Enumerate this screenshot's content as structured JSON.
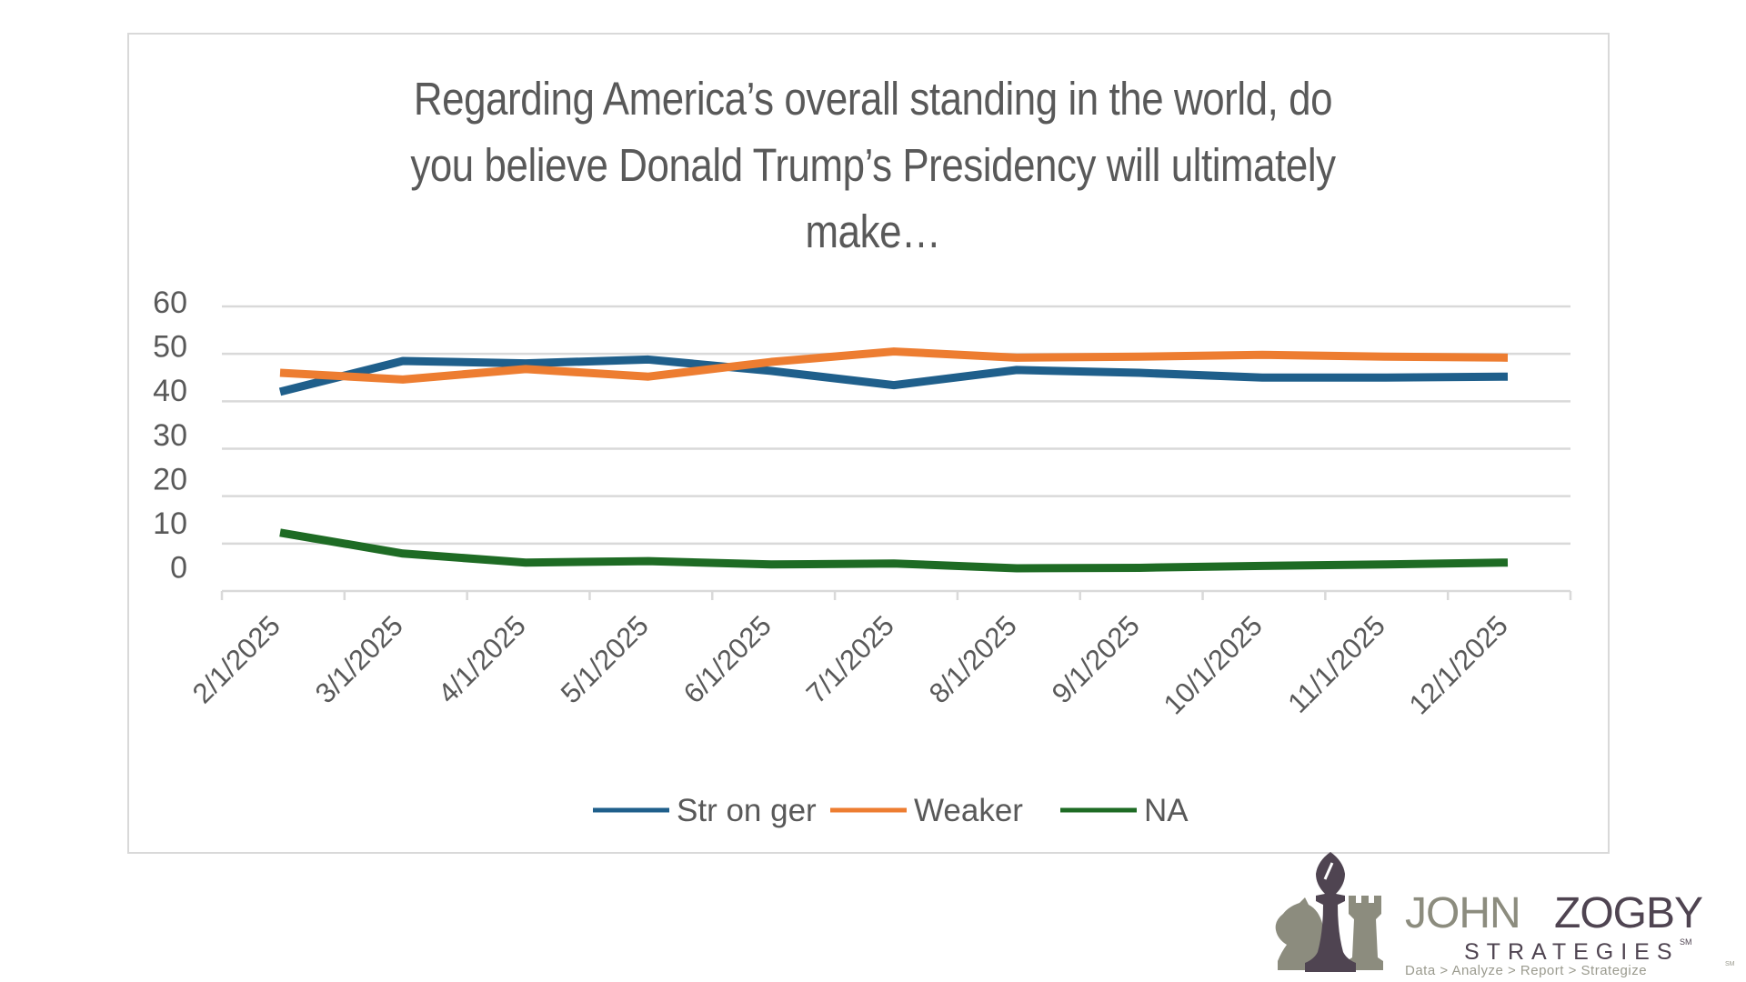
{
  "chart_data": {
    "type": "line",
    "title": "Regarding America’s overall standing in the world, do you believe Donald Trump’s Presidency will ultimately make…",
    "title_lines": [
      "Regarding America’s overall standing in the world, do",
      "you believe Donald Trump’s Presidency will ultimately",
      "make…"
    ],
    "xlabel": "",
    "ylabel": "",
    "categories": [
      "2/1/2025",
      "3/1/2025",
      "4/1/2025",
      "5/1/2025",
      "6/1/2025",
      "7/1/2025",
      "8/1/2025",
      "9/1/2025",
      "10/1/2025",
      "11/1/2025",
      "12/1/2025"
    ],
    "y_ticks": [
      "60",
      "50",
      "40",
      "30",
      "20",
      "10",
      "0"
    ],
    "ylim": [
      0,
      60
    ],
    "grid": true,
    "legend_position": "bottom",
    "series": [
      {
        "name": "Str on ger",
        "color": "#1f5f8b",
        "values": [
          42,
          48.5,
          48,
          48.8,
          46.4,
          43.4,
          46.6,
          46,
          45,
          45,
          45.2
        ]
      },
      {
        "name": "Weaker",
        "color": "#ed7d31",
        "values": [
          46,
          44.6,
          46.8,
          45.2,
          48.3,
          50.5,
          49.2,
          49.4,
          49.8,
          49.4,
          49.2
        ]
      },
      {
        "name": "NA",
        "color": "#1e6b24",
        "values": [
          12.3,
          7.9,
          6,
          6.3,
          5.6,
          5.8,
          4.8,
          4.9,
          5.3,
          5.6,
          6
        ]
      }
    ]
  },
  "logo": {
    "name_first": "JOHN",
    "name_last": "ZOGBY",
    "sub": "STRATEGIES",
    "sm": "SM",
    "tagline": "Data > Analyze > Report > Strategize",
    "colors": {
      "dark": "#4f4451",
      "light": "#8c8c7e"
    }
  }
}
